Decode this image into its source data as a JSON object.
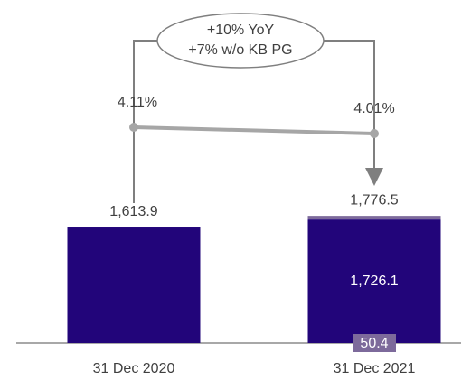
{
  "chart_data": {
    "type": "bar",
    "categories": [
      "31 Dec 2020",
      "31 Dec 2021"
    ],
    "series": [
      {
        "color": "#22057a",
        "values": [
          1613.9,
          1726.1
        ],
        "value_labels": [
          null,
          "1,726.1"
        ]
      },
      {
        "color": "#7d6a9b",
        "values": [
          null,
          50.4
        ]
      }
    ],
    "totals": [
      1613.9,
      1776.5
    ],
    "total_labels": [
      "1,613.9",
      "1,776.5"
    ],
    "line": {
      "color": "#a6a6a6",
      "values": [
        4.11,
        4.01
      ],
      "value_labels": [
        "4.11%",
        "4.01%"
      ]
    },
    "annotation": [
      "+10% YoY",
      "+7% w/o KB PG"
    ]
  }
}
